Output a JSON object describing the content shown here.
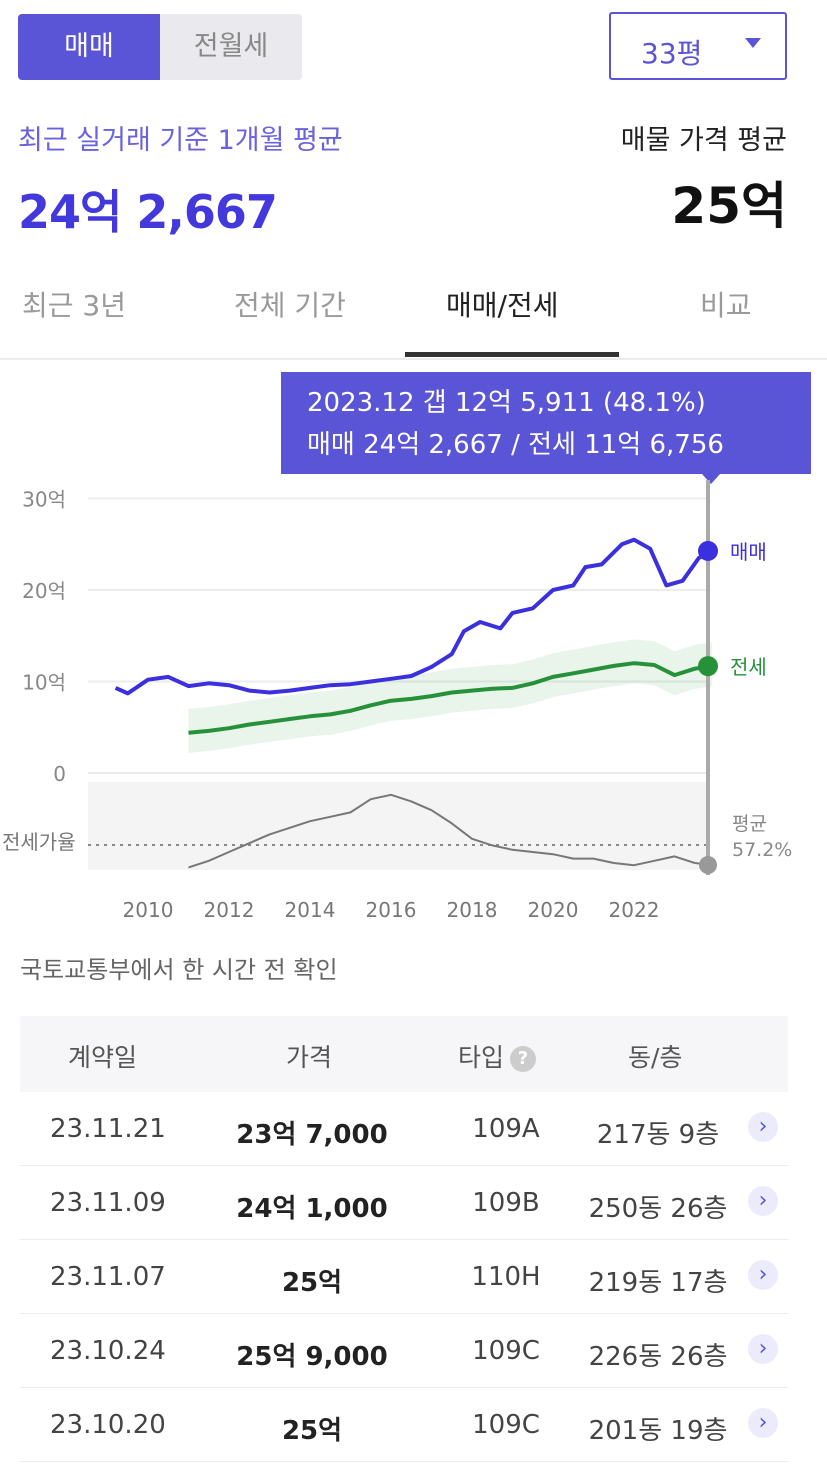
{
  "deal_toggle": {
    "active": "매매",
    "inactive": "전월세"
  },
  "area_select": {
    "value": "33평"
  },
  "summary": {
    "recent_label": "최근 실거래 기준 1개월 평균",
    "recent_value": "24억 2,667",
    "listing_label": "매물 가격 평균",
    "listing_value": "25억"
  },
  "tabs": [
    {
      "label": "최근 3년",
      "active": false
    },
    {
      "label": "전체 기간",
      "active": false
    },
    {
      "label": "매매/전세",
      "active": true
    },
    {
      "label": "비교",
      "active": false
    }
  ],
  "tooltip": {
    "line1": "2023.12  갭 12억 5,911 (48.1%)",
    "line2": "매매 24억 2,667 / 전세 11억 6,756"
  },
  "chart_data": {
    "type": "line",
    "x_ticks": [
      "2010",
      "2012",
      "2014",
      "2016",
      "2018",
      "2020",
      "2022"
    ],
    "y_ticks": [
      "0",
      "10억",
      "20억",
      "30억"
    ],
    "ylim": [
      0,
      30
    ],
    "series": [
      {
        "name": "매매",
        "color": "#3b30dd",
        "points": [
          [
            2009.2,
            9.3
          ],
          [
            2009.5,
            8.7
          ],
          [
            2010,
            10.2
          ],
          [
            2010.5,
            10.5
          ],
          [
            2011,
            9.5
          ],
          [
            2011.5,
            9.8
          ],
          [
            2012,
            9.6
          ],
          [
            2012.5,
            9.0
          ],
          [
            2013,
            8.8
          ],
          [
            2013.5,
            9.0
          ],
          [
            2014,
            9.3
          ],
          [
            2014.5,
            9.6
          ],
          [
            2015,
            9.7
          ],
          [
            2015.5,
            10.0
          ],
          [
            2016,
            10.3
          ],
          [
            2016.5,
            10.6
          ],
          [
            2017,
            11.6
          ],
          [
            2017.5,
            13.0
          ],
          [
            2017.8,
            15.5
          ],
          [
            2018.2,
            16.5
          ],
          [
            2018.7,
            15.8
          ],
          [
            2019,
            17.5
          ],
          [
            2019.5,
            18.0
          ],
          [
            2020,
            20.0
          ],
          [
            2020.5,
            20.5
          ],
          [
            2020.8,
            22.5
          ],
          [
            2021.2,
            22.8
          ],
          [
            2021.7,
            25.0
          ],
          [
            2022,
            25.5
          ],
          [
            2022.4,
            24.5
          ],
          [
            2022.8,
            20.5
          ],
          [
            2023.2,
            21.0
          ],
          [
            2023.6,
            23.5
          ],
          [
            2023.92,
            24.27
          ]
        ]
      },
      {
        "name": "전세",
        "color": "#27913a",
        "points": [
          [
            2011,
            4.4
          ],
          [
            2011.5,
            4.6
          ],
          [
            2012,
            4.9
          ],
          [
            2012.5,
            5.3
          ],
          [
            2013,
            5.6
          ],
          [
            2013.5,
            5.9
          ],
          [
            2014,
            6.2
          ],
          [
            2014.5,
            6.4
          ],
          [
            2015,
            6.8
          ],
          [
            2015.5,
            7.4
          ],
          [
            2016,
            7.9
          ],
          [
            2016.5,
            8.1
          ],
          [
            2017,
            8.4
          ],
          [
            2017.5,
            8.8
          ],
          [
            2018,
            9.0
          ],
          [
            2018.5,
            9.2
          ],
          [
            2019,
            9.3
          ],
          [
            2019.5,
            9.8
          ],
          [
            2020,
            10.5
          ],
          [
            2020.5,
            10.9
          ],
          [
            2021,
            11.3
          ],
          [
            2021.5,
            11.7
          ],
          [
            2022,
            12.0
          ],
          [
            2022.5,
            11.8
          ],
          [
            2023,
            10.7
          ],
          [
            2023.5,
            11.4
          ],
          [
            2023.92,
            11.68
          ]
        ]
      },
      {
        "name": "전세가율",
        "color": "#777777",
        "points": [
          [
            2011,
            47
          ],
          [
            2011.5,
            50
          ],
          [
            2012,
            54
          ],
          [
            2012.5,
            58
          ],
          [
            2013,
            62
          ],
          [
            2013.5,
            65
          ],
          [
            2014,
            68
          ],
          [
            2014.5,
            70
          ],
          [
            2015,
            72
          ],
          [
            2015.5,
            78
          ],
          [
            2016,
            80
          ],
          [
            2016.5,
            77
          ],
          [
            2017,
            73
          ],
          [
            2017.5,
            67
          ],
          [
            2018,
            60
          ],
          [
            2018.5,
            57
          ],
          [
            2019,
            55
          ],
          [
            2019.5,
            54
          ],
          [
            2020,
            53
          ],
          [
            2020.5,
            51
          ],
          [
            2021,
            51
          ],
          [
            2021.5,
            49
          ],
          [
            2022,
            48
          ],
          [
            2022.5,
            50
          ],
          [
            2023,
            52
          ],
          [
            2023.5,
            49
          ],
          [
            2023.92,
            48.1
          ]
        ]
      }
    ],
    "end_labels": {
      "sale": "매매",
      "jeonse": "전세",
      "ratio_left": "전세가율",
      "ratio_avg": "평균",
      "ratio_avg_value": "57.2%"
    },
    "ratio_avg": 57.2
  },
  "source_note": "국토교통부에서 한 시간 전 확인",
  "table": {
    "headers": {
      "date": "계약일",
      "price": "가격",
      "type": "타입",
      "unit": "동/층"
    },
    "help_icon": "?",
    "rows": [
      {
        "date": "23.11.21",
        "price": "23억 7,000",
        "type": "109A",
        "unit": "217동 9층"
      },
      {
        "date": "23.11.09",
        "price": "24억 1,000",
        "type": "109B",
        "unit": "250동 26층"
      },
      {
        "date": "23.11.07",
        "price": "25억",
        "type": "110H",
        "unit": "219동 17층"
      },
      {
        "date": "23.10.24",
        "price": "25억 9,000",
        "type": "109C",
        "unit": "226동 26층"
      },
      {
        "date": "23.10.20",
        "price": "25억",
        "type": "109C",
        "unit": "201동 19층"
      }
    ]
  },
  "colors": {
    "accent": "#5a55d6",
    "sale": "#3b30dd",
    "jeonse": "#27913a"
  }
}
